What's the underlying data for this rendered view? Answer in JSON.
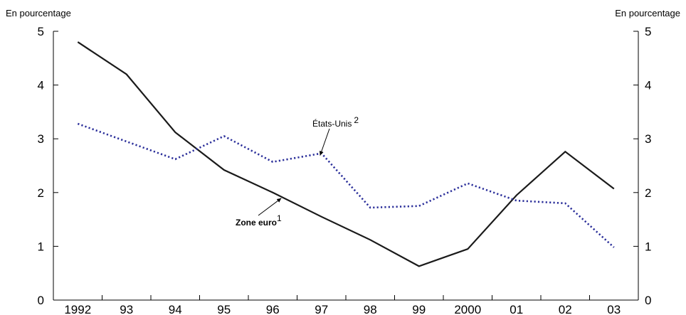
{
  "chart_data": {
    "type": "line",
    "title": "",
    "y_unit_left": "En pourcentage",
    "y_unit_right": "En pourcentage",
    "categories": [
      "1992",
      "93",
      "94",
      "95",
      "96",
      "97",
      "98",
      "99",
      "2000",
      "01",
      "02",
      "03"
    ],
    "ylim": [
      0,
      5
    ],
    "yticks": [
      "0",
      "1",
      "2",
      "3",
      "4",
      "5"
    ],
    "grid": false,
    "legend": "inline annotations",
    "series": [
      {
        "name": "Zone euro",
        "footnote": "1",
        "style": "solid",
        "color": "#1a1a1a",
        "values": [
          4.8,
          4.2,
          3.12,
          2.42,
          2.0,
          1.55,
          1.12,
          0.63,
          0.95,
          1.95,
          2.76,
          2.07
        ]
      },
      {
        "name": "États-Unis",
        "footnote": "2",
        "style": "dotted",
        "color": "#2b2f9a",
        "values": [
          3.28,
          2.95,
          2.62,
          3.05,
          2.57,
          2.73,
          1.72,
          1.75,
          2.17,
          1.85,
          1.8,
          0.98
        ]
      }
    ]
  }
}
